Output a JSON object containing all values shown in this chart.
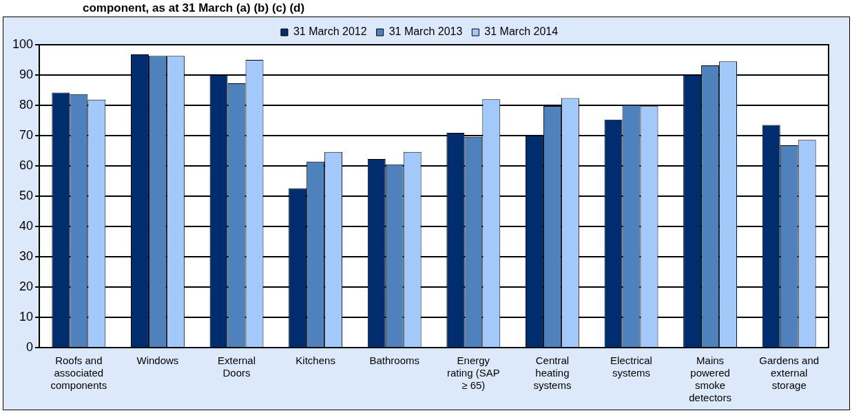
{
  "chart_data": {
    "type": "bar",
    "title": "component, as at 31 March (a) (b) (c) (d)",
    "categories": [
      "Roofs and associated components",
      "Windows",
      "External Doors",
      "Kitchens",
      "Bathrooms",
      "Energy rating (SAP ≥ 65)",
      "Central heating systems",
      "Electrical systems",
      "Mains powered smoke detectors",
      "Gardens and external storage"
    ],
    "series": [
      {
        "name": "31 March 2012",
        "color": "#002d6e",
        "values": [
          84.2,
          96.8,
          90,
          52.6,
          62.3,
          70.9,
          70,
          75.3,
          90,
          73.5
        ]
      },
      {
        "name": "31 March 2013",
        "color": "#4f81bd",
        "values": [
          83.7,
          96.3,
          87.3,
          61.4,
          60.5,
          69.6,
          79.8,
          80.1,
          93.2,
          66.8
        ]
      },
      {
        "name": "31 March 2014",
        "color": "#a3c8fa",
        "values": [
          81.9,
          96.3,
          95,
          64.6,
          64.6,
          82,
          82.4,
          79.7,
          94.5,
          68.6
        ]
      }
    ],
    "ylim": [
      0,
      100
    ],
    "yticks": [
      0,
      10,
      20,
      30,
      40,
      50,
      60,
      70,
      80,
      90,
      100
    ],
    "grid": "y",
    "legend": "top"
  }
}
